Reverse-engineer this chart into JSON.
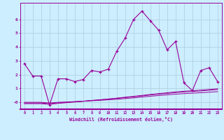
{
  "title": "",
  "xlabel": "Windchill (Refroidissement éolien,°C)",
  "background_color": "#cceeff",
  "line_color": "#990099",
  "grid_color": "#aaccdd",
  "x": [
    0,
    1,
    2,
    3,
    4,
    5,
    6,
    7,
    8,
    9,
    10,
    11,
    12,
    13,
    14,
    15,
    16,
    17,
    18,
    19,
    20,
    21,
    22,
    23
  ],
  "y_main": [
    2.8,
    1.9,
    1.9,
    -0.2,
    1.7,
    1.7,
    1.5,
    1.65,
    2.3,
    2.2,
    2.4,
    3.7,
    4.65,
    6.0,
    6.6,
    5.9,
    5.2,
    3.8,
    4.4,
    1.4,
    0.85,
    2.3,
    2.5,
    1.5
  ],
  "y_line1": [
    0.0,
    0.0,
    0.0,
    -0.05,
    0.0,
    0.02,
    0.05,
    0.08,
    0.11,
    0.14,
    0.18,
    0.22,
    0.27,
    0.32,
    0.38,
    0.44,
    0.49,
    0.54,
    0.59,
    0.63,
    0.66,
    0.69,
    0.73,
    0.77
  ],
  "y_line2": [
    -0.05,
    -0.05,
    -0.05,
    -0.1,
    -0.04,
    0.0,
    0.04,
    0.08,
    0.13,
    0.18,
    0.23,
    0.28,
    0.34,
    0.4,
    0.46,
    0.53,
    0.59,
    0.64,
    0.7,
    0.75,
    0.78,
    0.82,
    0.87,
    0.92
  ],
  "y_line3": [
    -0.1,
    -0.1,
    -0.1,
    -0.15,
    -0.08,
    -0.03,
    0.02,
    0.07,
    0.13,
    0.18,
    0.24,
    0.3,
    0.37,
    0.43,
    0.5,
    0.57,
    0.63,
    0.69,
    0.75,
    0.8,
    0.84,
    0.88,
    0.93,
    0.98
  ],
  "ylim": [
    -0.5,
    7.2
  ],
  "xlim": [
    -0.5,
    23.5
  ],
  "yticks": [
    0,
    1,
    2,
    3,
    4,
    5,
    6
  ],
  "ytick_labels": [
    "-0",
    "1",
    "2",
    "3",
    "4",
    "5",
    "6"
  ],
  "xticks": [
    0,
    1,
    2,
    3,
    4,
    5,
    6,
    7,
    8,
    9,
    10,
    11,
    12,
    13,
    14,
    15,
    16,
    17,
    18,
    19,
    20,
    21,
    22,
    23
  ]
}
